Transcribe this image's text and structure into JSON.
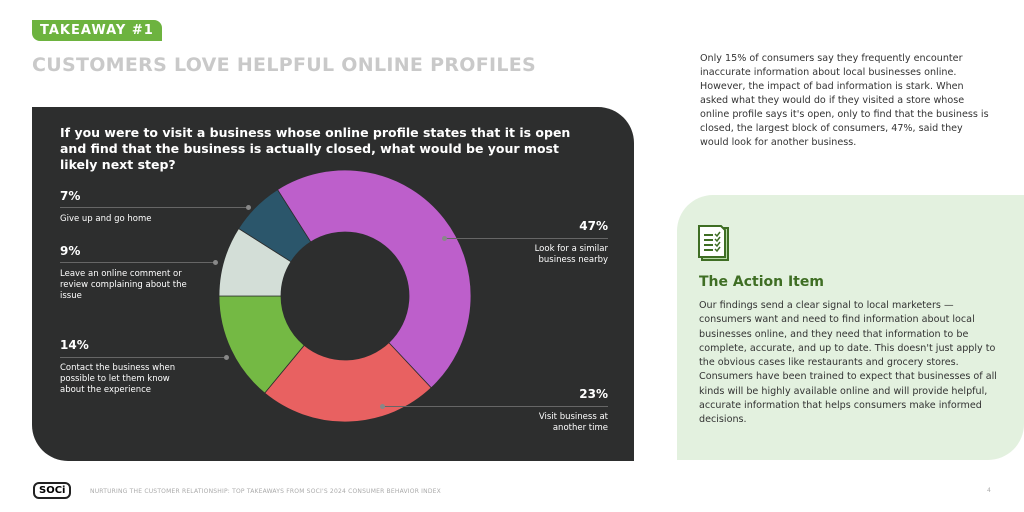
{
  "badge": "TAKEAWAY #1",
  "title": "CUSTOMERS LOVE HELPFUL ONLINE PROFILES",
  "intro": "Only 15% of consumers say they frequently encounter inaccurate information about local businesses online. However, the impact of bad information is stark. When asked what they would do if they visited a store whose online profile says it's open, only to find that the business is closed, the largest block of consumers, 47%, said they would look for another business.",
  "action": {
    "title": "The Action Item",
    "body": "Our findings send a clear signal to local marketers — consumers want and need to find information about local businesses online, and they need that information to be complete, accurate, and up to date. This doesn't just apply to the obvious cases like restaurants and grocery stores. Consumers have been trained to expect that businesses of all kinds will be highly available online and will provide helpful, accurate information that helps consumers make informed decisions."
  },
  "footer": {
    "logo": "SOCi",
    "text": "NURTURING THE CUSTOMER RELATIONSHIP: TOP TAKEAWAYS FROM SOCI'S 2024 CONSUMER BEHAVIOR INDEX",
    "page": "4"
  },
  "chart_data": {
    "type": "pie",
    "title": "If you were to visit a business whose online profile states that it is open and find that the business is actually closed, what would be your most likely next step?",
    "slices": [
      {
        "label": "Look for a similar business nearby",
        "value": 47,
        "pct": "47%",
        "color": "#bd5fcb"
      },
      {
        "label": "Visit business at another time",
        "value": 23,
        "pct": "23%",
        "color": "#e86161"
      },
      {
        "label": "Contact the business when possible to let them know about the experience",
        "value": 14,
        "pct": "14%",
        "color": "#74b944"
      },
      {
        "label": "Leave an online comment or review complaining about the issue",
        "value": 9,
        "pct": "9%",
        "color": "#d3ded7"
      },
      {
        "label": "Give up and go home",
        "value": 7,
        "pct": "7%",
        "color": "#2b566b"
      }
    ]
  }
}
